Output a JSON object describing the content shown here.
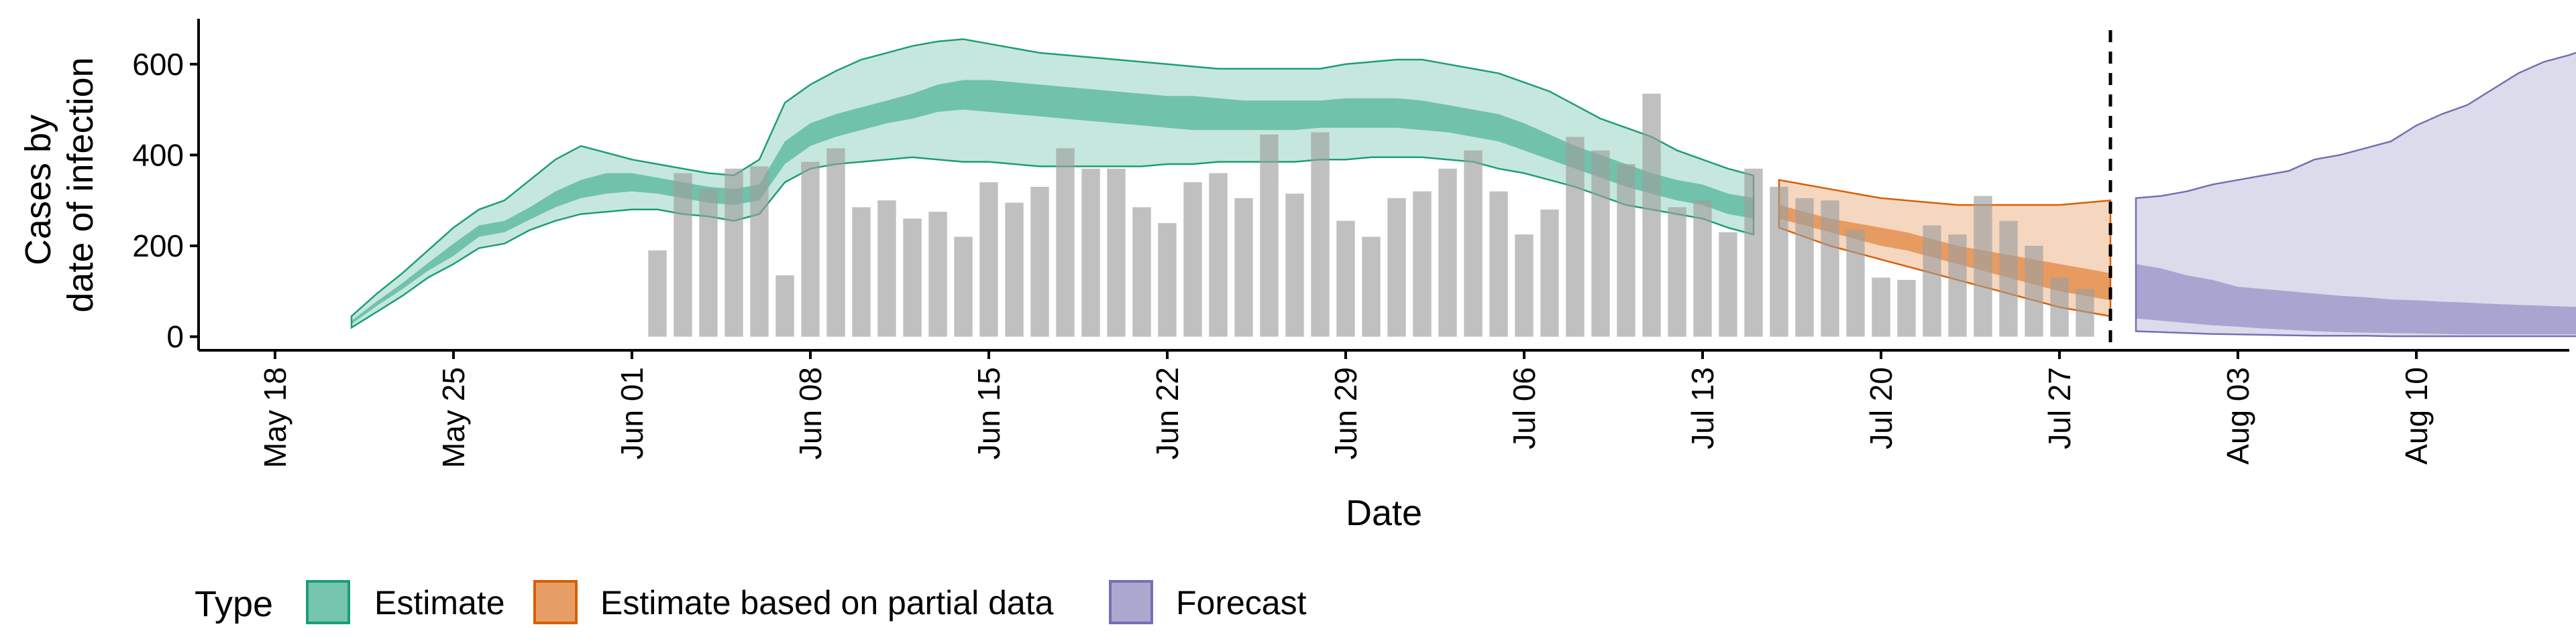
{
  "chart_data": {
    "type": "area",
    "xlabel": "Date",
    "ylabel_lines": [
      "Cases by",
      "date of infection"
    ],
    "ylim": [
      -30,
      700
    ],
    "xlim": [
      "2020-05-15",
      "2020-08-16"
    ],
    "y_ticks": [
      0,
      200,
      400,
      600
    ],
    "x_ticks": [
      {
        "date": "2020-05-18",
        "label": "May 18"
      },
      {
        "date": "2020-05-25",
        "label": "May 25"
      },
      {
        "date": "2020-06-01",
        "label": "Jun 01"
      },
      {
        "date": "2020-06-08",
        "label": "Jun 08"
      },
      {
        "date": "2020-06-15",
        "label": "Jun 15"
      },
      {
        "date": "2020-06-22",
        "label": "Jun 22"
      },
      {
        "date": "2020-06-29",
        "label": "Jun 29"
      },
      {
        "date": "2020-07-06",
        "label": "Jul 06"
      },
      {
        "date": "2020-07-13",
        "label": "Jul 13"
      },
      {
        "date": "2020-07-20",
        "label": "Jul 20"
      },
      {
        "date": "2020-07-27",
        "label": "Jul 27"
      },
      {
        "date": "2020-08-03",
        "label": "Aug 03"
      },
      {
        "date": "2020-08-10",
        "label": "Aug 10"
      }
    ],
    "grid": false,
    "forecast_line_date": "2020-07-29",
    "reported_cases": {
      "start": "2020-06-02",
      "values": [
        190,
        360,
        325,
        370,
        375,
        135,
        385,
        415,
        285,
        300,
        260,
        275,
        220,
        340,
        295,
        330,
        415,
        370,
        370,
        285,
        250,
        340,
        360,
        305,
        445,
        315,
        450,
        255,
        220,
        305,
        320,
        370,
        410,
        320,
        225,
        280,
        440,
        410,
        380,
        535,
        285,
        300,
        230,
        370,
        330,
        305,
        300,
        235,
        130,
        125,
        245,
        225,
        310,
        255,
        200,
        130,
        105
      ]
    },
    "legend": {
      "title": "Type",
      "position": "bottom",
      "entries": [
        {
          "label": "Estimate",
          "color": "#1B9E77"
        },
        {
          "label": "Estimate based on partial data",
          "color": "#D95F02"
        },
        {
          "label": "Forecast",
          "color": "#7570B3"
        }
      ]
    },
    "series": [
      {
        "type_key": "Estimate",
        "color": "#1B9E77",
        "start": "2020-05-21",
        "lower90": [
          20,
          55,
          90,
          130,
          160,
          195,
          205,
          235,
          255,
          270,
          275,
          280,
          280,
          270,
          265,
          255,
          270,
          340,
          370,
          380,
          385,
          390,
          395,
          390,
          385,
          385,
          380,
          375,
          375,
          375,
          375,
          375,
          380,
          380,
          385,
          385,
          385,
          385,
          390,
          390,
          395,
          395,
          395,
          390,
          385,
          370,
          360,
          345,
          330,
          310,
          290,
          280,
          270,
          260,
          240,
          225
        ],
        "lower50": [
          28,
          68,
          105,
          145,
          178,
          220,
          230,
          258,
          285,
          305,
          315,
          320,
          315,
          305,
          295,
          290,
          300,
          380,
          420,
          440,
          455,
          470,
          480,
          495,
          500,
          495,
          490,
          485,
          480,
          475,
          470,
          465,
          460,
          455,
          455,
          455,
          455,
          455,
          460,
          460,
          460,
          460,
          455,
          450,
          440,
          430,
          410,
          390,
          370,
          350,
          330,
          315,
          300,
          290,
          270,
          260
        ],
        "upper50": [
          35,
          78,
          118,
          162,
          205,
          245,
          255,
          285,
          320,
          345,
          360,
          360,
          350,
          340,
          330,
          325,
          335,
          430,
          470,
          490,
          505,
          520,
          535,
          555,
          565,
          565,
          560,
          555,
          550,
          545,
          540,
          535,
          530,
          530,
          525,
          520,
          520,
          520,
          520,
          525,
          525,
          525,
          520,
          510,
          500,
          490,
          470,
          445,
          420,
          400,
          380,
          360,
          345,
          335,
          315,
          305
        ],
        "upper90": [
          45,
          95,
          140,
          190,
          240,
          280,
          300,
          345,
          390,
          420,
          405,
          390,
          380,
          370,
          360,
          355,
          390,
          515,
          555,
          585,
          610,
          625,
          640,
          650,
          655,
          645,
          635,
          625,
          620,
          615,
          610,
          605,
          600,
          595,
          590,
          590,
          590,
          590,
          590,
          600,
          605,
          610,
          610,
          600,
          590,
          580,
          560,
          540,
          510,
          480,
          460,
          440,
          410,
          390,
          370,
          355
        ]
      },
      {
        "type_key": "Estimate based on partial data",
        "color": "#D95F02",
        "start": "2020-07-16",
        "lower90": [
          240,
          220,
          200,
          185,
          170,
          155,
          140,
          125,
          110,
          95,
          80,
          65,
          55,
          45
        ],
        "lower50": [
          260,
          245,
          230,
          215,
          200,
          190,
          175,
          160,
          145,
          130,
          115,
          100,
          90,
          80
        ],
        "upper50": [
          290,
          275,
          260,
          250,
          240,
          230,
          215,
          200,
          190,
          180,
          170,
          160,
          150,
          140
        ],
        "upper90": [
          345,
          335,
          325,
          315,
          305,
          300,
          295,
          290,
          290,
          290,
          290,
          290,
          295,
          300
        ]
      },
      {
        "type_key": "Forecast",
        "color": "#7570B3",
        "start": "2020-07-30",
        "lower90": [
          12,
          10,
          8,
          6,
          5,
          4,
          3,
          2,
          2,
          2,
          1,
          1,
          1,
          1,
          1,
          1,
          1,
          1,
          1
        ],
        "lower50": [
          40,
          35,
          30,
          25,
          22,
          18,
          15,
          12,
          10,
          9,
          8,
          7,
          6,
          5,
          5,
          5,
          5,
          5,
          5
        ],
        "upper50": [
          160,
          150,
          135,
          125,
          110,
          105,
          100,
          95,
          90,
          87,
          82,
          80,
          77,
          75,
          72,
          70,
          68,
          66,
          65
        ],
        "upper90": [
          305,
          310,
          320,
          335,
          345,
          355,
          365,
          390,
          400,
          415,
          430,
          465,
          490,
          510,
          545,
          580,
          605,
          620,
          640
        ]
      }
    ]
  }
}
